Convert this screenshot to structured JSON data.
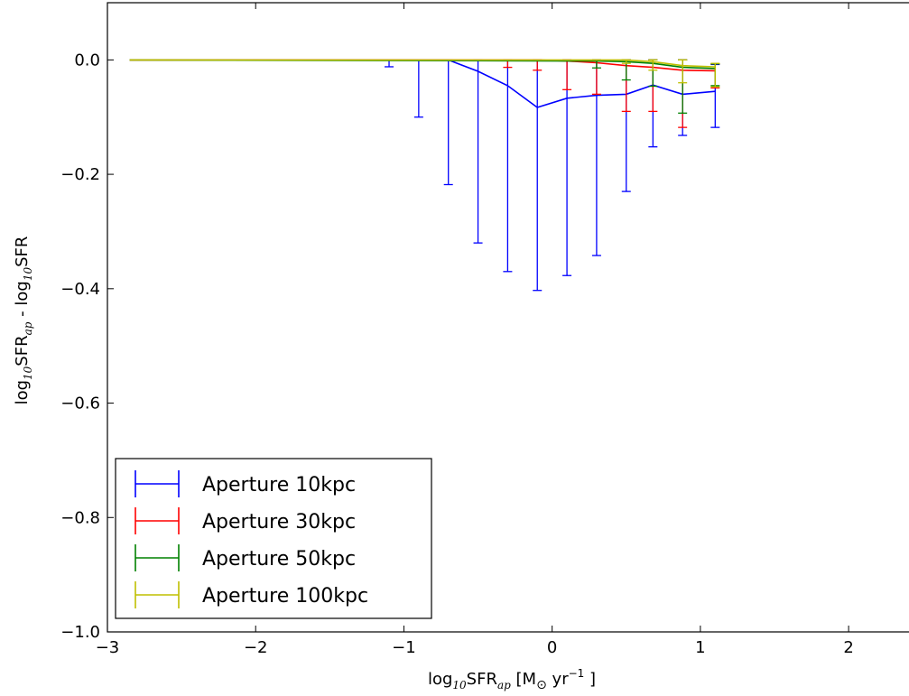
{
  "chart_data": {
    "type": "line",
    "title": "",
    "xlabel": {
      "pre": "log",
      "sub1": "10",
      "mid": "SFR",
      "sub2": "ap",
      "post_a": " [M",
      "odot": "⊙",
      "post_b": " yr",
      "sup": "−1",
      "post_c": " ]"
    },
    "ylabel": {
      "pre": "log",
      "sub1": "10",
      "mid": "SFR",
      "sub2": "ap",
      "post": " - log",
      "sub3": "10",
      "tail": "SFR"
    },
    "xlim": [
      -3,
      2.45
    ],
    "ylim": [
      -1.0,
      0.1
    ],
    "xticks": [
      -3,
      -2,
      -1,
      0,
      1,
      2
    ],
    "xtick_labels": [
      "−3",
      "−2",
      "−1",
      "0",
      "1",
      "2"
    ],
    "yticks": [
      0.0,
      -0.2,
      -0.4,
      -0.6,
      -0.8,
      -1.0
    ],
    "ytick_labels": [
      "0.0",
      "−0.2",
      "−0.4",
      "−0.6",
      "−0.8",
      "−1.0"
    ],
    "legend_position": "lower-left",
    "grid": false,
    "series": [
      {
        "name": "Aperture 10kpc",
        "color": "#0000ff",
        "x": [
          -2.85,
          -1.1,
          -0.9,
          -0.7,
          -0.5,
          -0.3,
          -0.1,
          0.1,
          0.3,
          0.5,
          0.68,
          0.88,
          1.1
        ],
        "y": [
          0.0,
          0.0,
          0.0,
          0.0,
          -0.02,
          -0.045,
          -0.083,
          -0.067,
          -0.062,
          -0.06,
          -0.044,
          -0.06,
          -0.055
        ],
        "err_low": [
          0.0,
          0.012,
          0.1,
          0.218,
          0.3,
          0.325,
          0.32,
          0.31,
          0.28,
          0.17,
          0.108,
          0.072,
          0.063
        ],
        "err_high": [
          0.0,
          0.0,
          0.0,
          0.0,
          0.02,
          0.045,
          0.083,
          0.067,
          0.062,
          0.06,
          0.044,
          0.06,
          0.047
        ]
      },
      {
        "name": "Aperture 30kpc",
        "color": "#ff0000",
        "x": [
          -2.85,
          -0.3,
          -0.1,
          0.1,
          0.3,
          0.5,
          0.68,
          0.88,
          1.1
        ],
        "y": [
          0.0,
          0.0,
          0.0,
          -0.002,
          -0.005,
          -0.01,
          -0.013,
          -0.018,
          -0.019
        ],
        "err_low": [
          0.0,
          0.013,
          0.018,
          0.05,
          0.055,
          0.08,
          0.077,
          0.1,
          0.03
        ],
        "err_high": [
          0.0,
          0.0,
          0.0,
          0.002,
          0.005,
          0.01,
          0.013,
          0.018,
          0.012
        ]
      },
      {
        "name": "Aperture 50kpc",
        "color": "#008000",
        "x": [
          -2.85,
          0.3,
          0.5,
          0.68,
          0.88,
          1.1
        ],
        "y": [
          0.0,
          -0.002,
          -0.003,
          -0.006,
          -0.013,
          -0.015
        ],
        "err_low": [
          0.0,
          0.012,
          0.032,
          0.04,
          0.08,
          0.03
        ],
        "err_high": [
          0.0,
          0.002,
          0.003,
          0.006,
          0.013,
          0.008
        ]
      },
      {
        "name": "Aperture 100kpc",
        "color": "#bfbf00",
        "x": [
          -2.85,
          0.5,
          0.68,
          0.88,
          1.1
        ],
        "y": [
          0.0,
          0.0,
          -0.003,
          -0.01,
          -0.012
        ],
        "err_low": [
          0.0,
          0.006,
          0.015,
          0.03,
          0.035
        ],
        "err_high": [
          0.0,
          0.0,
          0.003,
          0.01,
          0.006
        ]
      }
    ]
  }
}
